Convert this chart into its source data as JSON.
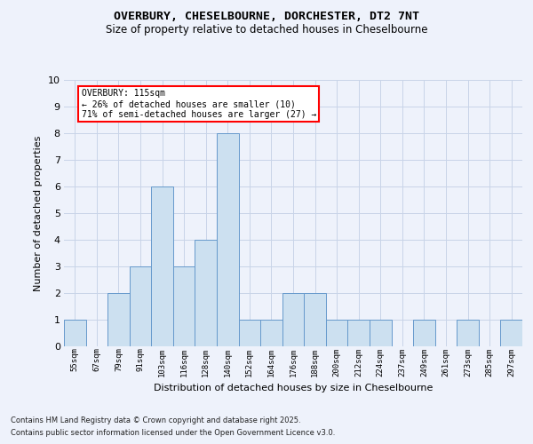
{
  "title_line1": "OVERBURY, CHESELBOURNE, DORCHESTER, DT2 7NT",
  "title_line2": "Size of property relative to detached houses in Cheselbourne",
  "xlabel": "Distribution of detached houses by size in Cheselbourne",
  "ylabel": "Number of detached properties",
  "categories": [
    "55sqm",
    "67sqm",
    "79sqm",
    "91sqm",
    "103sqm",
    "116sqm",
    "128sqm",
    "140sqm",
    "152sqm",
    "164sqm",
    "176sqm",
    "188sqm",
    "200sqm",
    "212sqm",
    "224sqm",
    "237sqm",
    "249sqm",
    "261sqm",
    "273sqm",
    "285sqm",
    "297sqm"
  ],
  "values": [
    1,
    0,
    2,
    3,
    6,
    3,
    4,
    8,
    1,
    1,
    2,
    2,
    1,
    1,
    1,
    0,
    1,
    0,
    1,
    0,
    1
  ],
  "bar_color": "#cce0f0",
  "bar_edge_color": "#6699cc",
  "annotation_text": "OVERBURY: 115sqm\n← 26% of detached houses are smaller (10)\n71% of semi-detached houses are larger (27) →",
  "annotation_box_color": "white",
  "annotation_box_edge_color": "red",
  "ylim": [
    0,
    10
  ],
  "yticks": [
    0,
    1,
    2,
    3,
    4,
    5,
    6,
    7,
    8,
    9,
    10
  ],
  "grid_color": "#c8d4e8",
  "background_color": "#eef2fb",
  "footer_line1": "Contains HM Land Registry data © Crown copyright and database right 2025.",
  "footer_line2": "Contains public sector information licensed under the Open Government Licence v3.0."
}
